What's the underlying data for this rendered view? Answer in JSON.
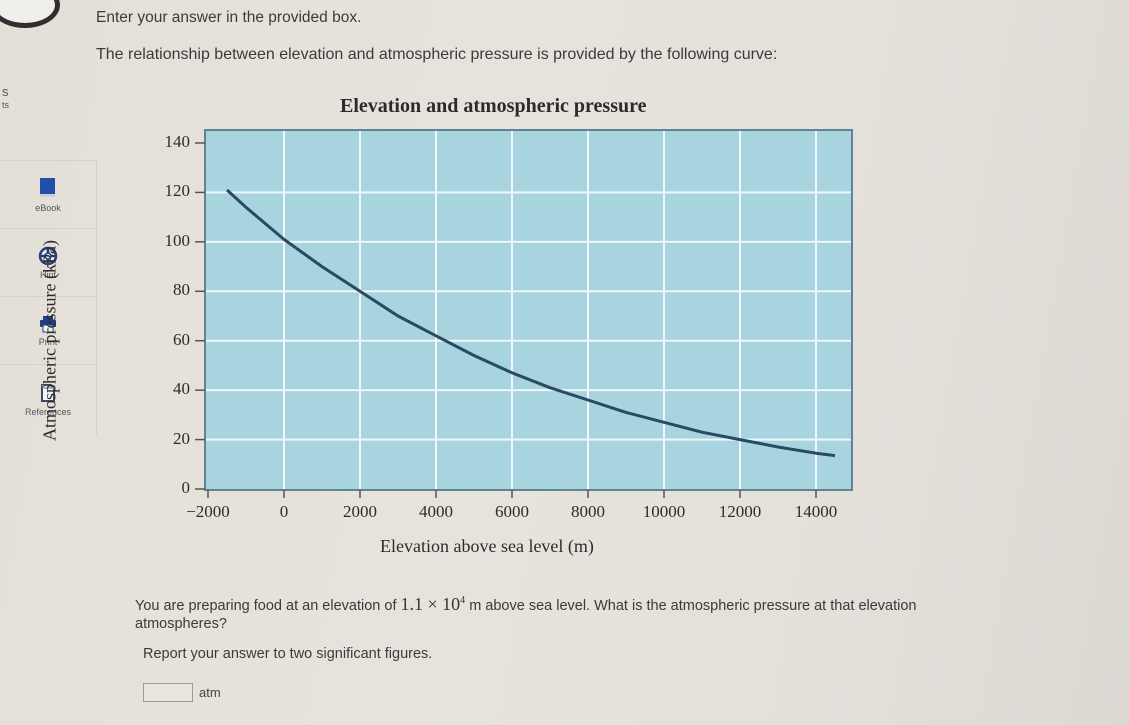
{
  "sidebar": {
    "fragments": [
      "s",
      "ts"
    ],
    "items": [
      {
        "label": "eBook",
        "icon": "book-icon"
      },
      {
        "label": "Hint",
        "icon": "lifebuoy-icon"
      },
      {
        "label": "Print",
        "icon": "printer-icon"
      },
      {
        "label": "References",
        "icon": "document-icon"
      }
    ]
  },
  "instructions": "Enter your answer in the provided box.",
  "intro": "The relationship between elevation and atmospheric pressure is provided by the following curve:",
  "chart_data": {
    "type": "line",
    "title": "Elevation and atmospheric pressure",
    "xlabel": "Elevation above sea level (m)",
    "ylabel": "Atmospheric pressure (kPa)",
    "xlim": [
      -2000,
      14500
    ],
    "ylim": [
      0,
      140
    ],
    "xticks": [
      -2000,
      0,
      2000,
      4000,
      6000,
      8000,
      10000,
      12000,
      14000
    ],
    "xtick_labels": [
      "−2000",
      "0",
      "2000",
      "4000",
      "6000",
      "8000",
      "10000",
      "12000",
      "14000"
    ],
    "yticks": [
      0,
      20,
      40,
      60,
      80,
      100,
      120,
      140
    ],
    "ytick_labels": [
      "0",
      "20",
      "40",
      "60",
      "80",
      "100",
      "120",
      "140"
    ],
    "grid": true,
    "background": "#a8d4e0",
    "line_color": "#2a4a62",
    "series": [
      {
        "name": "Atmospheric pressure",
        "x": [
          -1500,
          -1000,
          0,
          1000,
          2000,
          3000,
          4000,
          5000,
          6000,
          7000,
          8000,
          9000,
          10000,
          11000,
          12000,
          13000,
          14000,
          14500
        ],
        "y": [
          121,
          114,
          101,
          90,
          80,
          70,
          62,
          54,
          47,
          41,
          36,
          31,
          27,
          23,
          20,
          17,
          14.5,
          13.5
        ]
      }
    ]
  },
  "question": {
    "prefix": "You are preparing food at an elevation of",
    "value_mantissa": "1.1",
    "value_times": "×",
    "value_base": "10",
    "value_exponent": "4",
    "suffix": "m above sea level. What is the atmospheric pressure at that elevation",
    "line2": "atmospheres?"
  },
  "report": "Report your answer to two significant figures.",
  "answer": {
    "value": "",
    "unit": "atm"
  }
}
